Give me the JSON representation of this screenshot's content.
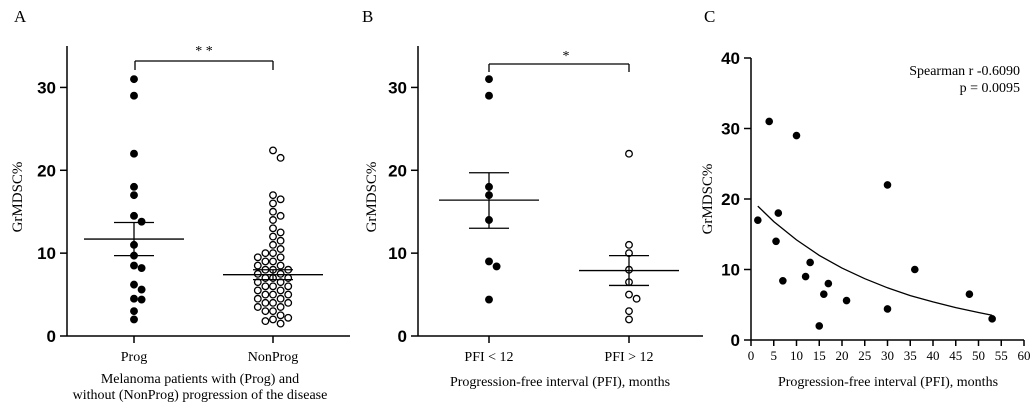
{
  "chart_data": [
    {
      "type": "scatter",
      "panel_label": "A",
      "ylabel": "GrMDSC%",
      "xlabel_line1": "Melanoma patients with (Prog) and",
      "xlabel_line2": "without (NonProg) progression of the disease",
      "ylim": [
        0,
        35
      ],
      "yticks": [
        "0",
        "10",
        "20",
        "30"
      ],
      "categories": [
        "Prog",
        "NonProg"
      ],
      "significance": "* *",
      "series": [
        {
          "name": "Prog",
          "filled": true,
          "mean": 11.7,
          "sem_low": 9.7,
          "sem_high": 13.7,
          "values": [
            31,
            29,
            22,
            18,
            17,
            14.5,
            13.8,
            11,
            9.7,
            8.5,
            8.2,
            6.2,
            5.6,
            4.5,
            4.4,
            3,
            2
          ]
        },
        {
          "name": "NonProg",
          "filled": false,
          "mean": 7.4,
          "sem_low": 6.8,
          "sem_high": 8.0,
          "values": [
            22.4,
            21.5,
            17,
            16.5,
            16,
            15,
            14.5,
            14,
            13,
            12.5,
            12,
            11.5,
            11,
            10.5,
            10,
            10,
            9.5,
            9.5,
            9,
            9,
            8.5,
            8.5,
            8,
            8,
            8,
            7.5,
            7.5,
            7,
            7,
            7,
            6.5,
            6.5,
            6,
            6,
            6,
            5.5,
            5.5,
            5,
            5,
            5,
            4.5,
            4.5,
            4,
            4,
            4,
            3.5,
            3.5,
            3,
            3,
            2.5,
            2.2,
            2,
            1.8,
            1.5
          ]
        }
      ]
    },
    {
      "type": "scatter",
      "panel_label": "B",
      "ylabel": "GrMDSC%",
      "xlabel": "Progression-free interval (PFI), months",
      "ylim": [
        0,
        35
      ],
      "yticks": [
        "0",
        "10",
        "20",
        "30"
      ],
      "categories": [
        "PFI < 12",
        "PFI > 12"
      ],
      "significance": "*",
      "series": [
        {
          "name": "PFI < 12",
          "filled": true,
          "mean": 16.4,
          "sem_low": 13.0,
          "sem_high": 19.7,
          "values": [
            31,
            29,
            18,
            17,
            14,
            9,
            8.4,
            4.4
          ]
        },
        {
          "name": "PFI > 12",
          "filled": false,
          "mean": 7.9,
          "sem_low": 6.1,
          "sem_high": 9.7,
          "values": [
            22,
            11,
            10,
            8,
            6.5,
            5,
            4.5,
            3,
            2
          ]
        }
      ]
    },
    {
      "type": "scatter",
      "panel_label": "C",
      "ylabel": "GrMDSC%",
      "xlabel": "Progression-free interval (PFI), months",
      "xlim": [
        0,
        60
      ],
      "ylim": [
        0,
        40
      ],
      "xticks": [
        "0",
        "5",
        "10",
        "15",
        "20",
        "25",
        "30",
        "35",
        "40",
        "45",
        "50",
        "55",
        "60"
      ],
      "yticks": [
        "0",
        "10",
        "20",
        "30",
        "40"
      ],
      "annotation_line1": "Spearman r -0.6090",
      "annotation_line2": "p = 0.0095",
      "points": [
        {
          "x": 1.5,
          "y": 17
        },
        {
          "x": 4,
          "y": 31
        },
        {
          "x": 5.5,
          "y": 14
        },
        {
          "x": 6,
          "y": 18
        },
        {
          "x": 7,
          "y": 8.4
        },
        {
          "x": 10,
          "y": 29
        },
        {
          "x": 12,
          "y": 9
        },
        {
          "x": 13,
          "y": 11
        },
        {
          "x": 15,
          "y": 2
        },
        {
          "x": 16,
          "y": 6.5
        },
        {
          "x": 17,
          "y": 8
        },
        {
          "x": 21,
          "y": 5.6
        },
        {
          "x": 30,
          "y": 22
        },
        {
          "x": 30,
          "y": 4.4
        },
        {
          "x": 36,
          "y": 10
        },
        {
          "x": 48,
          "y": 6.5
        },
        {
          "x": 53,
          "y": 3
        }
      ],
      "fit_curve": {
        "x": [
          1.5,
          5,
          10,
          15,
          20,
          25,
          30,
          35,
          40,
          45,
          50,
          53
        ],
        "y": [
          19,
          16.8,
          14.2,
          12,
          10.2,
          8.7,
          7.4,
          6.3,
          5.4,
          4.6,
          3.9,
          3.5
        ]
      }
    }
  ]
}
